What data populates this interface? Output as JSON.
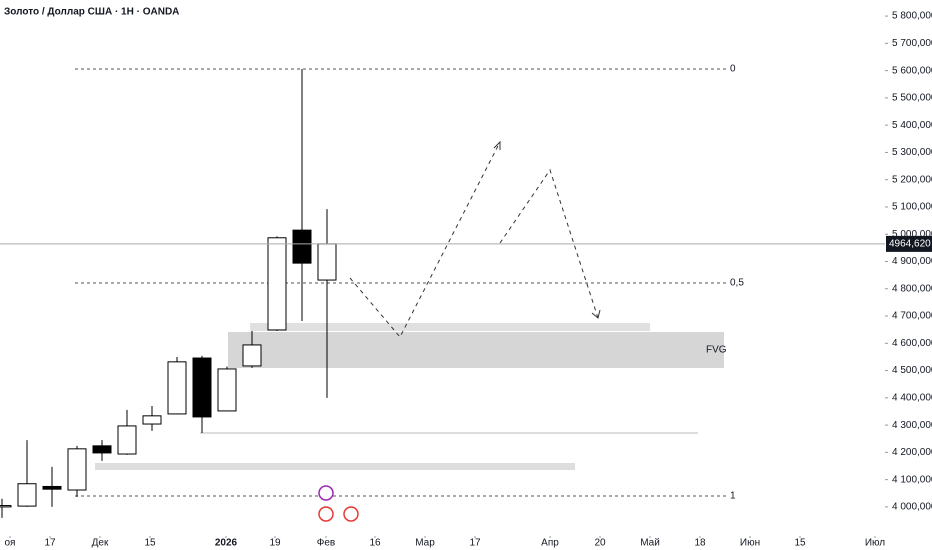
{
  "chart_data": {
    "type": "candlestick",
    "title": "Золото / Доллар США · 1Н · OANDA",
    "open": [
      4000,
      4003,
      4075,
      4062,
      4224,
      4194,
      4304,
      4341,
      4546,
      4352,
      4517,
      4649,
      5015,
      4832
    ],
    "high": [
      4030,
      4245,
      4147,
      4224,
      4245,
      4356,
      4370,
      4550,
      4554,
      4515,
      4645,
      4992,
      5606,
      5092
    ],
    "low": [
      3960,
      4000,
      4000,
      4037,
      4169,
      4191,
      4279,
      4339,
      4271,
      4350,
      4510,
      4645,
      4682,
      4400
    ],
    "close": [
      4005,
      4085,
      4065,
      4213,
      4198,
      4297,
      4334,
      4532,
      4330,
      4506,
      4594,
      4987,
      4894,
      4964.62
    ],
    "up_color": "#ffffff",
    "down_color": "#000000",
    "xlim": [
      -0.08,
      35.32
    ],
    "xticks": [
      {
        "value": 0.32,
        "label": "оя"
      },
      {
        "value": 1.92,
        "label": "17"
      },
      {
        "value": 3.92,
        "label": "Дек"
      },
      {
        "value": 5.92,
        "label": "15"
      },
      {
        "value": 8.96,
        "label": "2026"
      },
      {
        "value": 10.92,
        "label": "19"
      },
      {
        "value": 12.96,
        "label": "Фев"
      },
      {
        "value": 14.92,
        "label": "16"
      },
      {
        "value": 16.92,
        "label": "Мар"
      },
      {
        "value": 18.92,
        "label": "17"
      },
      {
        "value": 21.92,
        "label": "Апр"
      },
      {
        "value": 23.92,
        "label": "20"
      },
      {
        "value": 25.92,
        "label": "Май"
      },
      {
        "value": 27.92,
        "label": "18"
      },
      {
        "value": 29.92,
        "label": "Июн"
      },
      {
        "value": 31.92,
        "label": "15"
      },
      {
        "value": 34.92,
        "label": "Июл"
      }
    ],
    "ylim": [
      3842,
      5859
    ],
    "yticks": [
      {
        "value": 4000,
        "label": "4 000,000"
      },
      {
        "value": 4100,
        "label": "4 100,000"
      },
      {
        "value": 4200,
        "label": "4 200,000"
      },
      {
        "value": 4300,
        "label": "4 300,000"
      },
      {
        "value": 4400,
        "label": "4 400,000"
      },
      {
        "value": 4500,
        "label": "4 500,000"
      },
      {
        "value": 4600,
        "label": "4 600,000"
      },
      {
        "value": 4700,
        "label": "4 700,000"
      },
      {
        "value": 4800,
        "label": "4 800,000"
      },
      {
        "value": 4900,
        "label": "4 900,000"
      },
      {
        "value": 5000,
        "label": "5 000,000"
      },
      {
        "value": 5100,
        "label": "5 100,000"
      },
      {
        "value": 5200,
        "label": "5 200,000"
      },
      {
        "value": 5300,
        "label": "5 300,000"
      },
      {
        "value": 5400,
        "label": "5 400,000"
      },
      {
        "value": 5500,
        "label": "5 500,000"
      },
      {
        "value": 5600,
        "label": "5 600,000"
      },
      {
        "value": 5700,
        "label": "5 700,000"
      },
      {
        "value": 5800,
        "label": "5 800,000"
      }
    ],
    "last_price": {
      "value": 4964.62,
      "label": "4964,620"
    },
    "annotations": [
      "0",
      "0,5",
      "1",
      "FVG"
    ]
  }
}
